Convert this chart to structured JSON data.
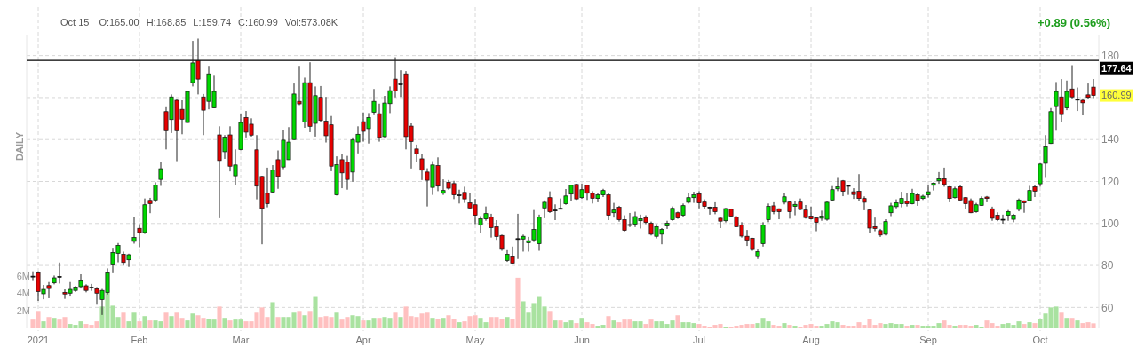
{
  "chart_data": {
    "type": "candlestick",
    "annotations": [
      "Oct 15",
      "O:165.00",
      "H:168.85",
      "L:159.74",
      "C:160.99",
      "Vol:573.08K",
      "+0.89 (0.56%)",
      "DAILY",
      {
        "text": "160.99",
        "y": 160.99
      }
    ],
    "categories": [
      null,
      "2021",
      null,
      null,
      null,
      null,
      null,
      null,
      null,
      null,
      null,
      null,
      null,
      null,
      null,
      null,
      null,
      null,
      null,
      null,
      "Feb",
      null,
      null,
      null,
      null,
      null,
      null,
      null,
      null,
      null,
      null,
      null,
      null,
      null,
      null,
      null,
      null,
      null,
      null,
      "Mar",
      null,
      null,
      null,
      null,
      null,
      null,
      null,
      null,
      null,
      null,
      null,
      null,
      null,
      null,
      null,
      null,
      null,
      null,
      null,
      null,
      null,
      null,
      "Apr",
      null,
      null,
      null,
      null,
      null,
      null,
      null,
      null,
      null,
      null,
      null,
      null,
      null,
      null,
      null,
      null,
      null,
      null,
      null,
      null,
      "May",
      null,
      null,
      null,
      null,
      null,
      null,
      null,
      null,
      null,
      null,
      null,
      null,
      null,
      null,
      null,
      null,
      null,
      null,
      null,
      "Jun",
      null,
      null,
      null,
      null,
      null,
      null,
      null,
      null,
      null,
      null,
      null,
      null,
      null,
      null,
      null,
      null,
      null,
      null,
      null,
      null,
      null,
      "Jul",
      null,
      null,
      null,
      null,
      null,
      null,
      null,
      null,
      null,
      null,
      null,
      null,
      null,
      null,
      null,
      null,
      null,
      null,
      null,
      null,
      "Aug",
      null,
      null,
      null,
      null,
      null,
      null,
      null,
      null,
      null,
      null,
      null,
      null,
      null,
      null,
      null,
      null,
      null,
      null,
      null,
      null,
      null,
      "Sep",
      null,
      null,
      null,
      null,
      null,
      null,
      null,
      null,
      null,
      null,
      null,
      null,
      null,
      null,
      null,
      null,
      null,
      null,
      null,
      null,
      "Oct",
      null,
      null,
      null,
      null,
      null,
      null,
      null,
      null,
      null,
      null
    ],
    "series": [
      {
        "type": "bar",
        "axis": "y2",
        "values": [
          1.0,
          2.0,
          0.8,
          1.3,
          1.2,
          1.0,
          1.3,
          0.5,
          0.4,
          0.8,
          0.5,
          0.4,
          0.8,
          2.5,
          4.1,
          2.6,
          1.3,
          1.8,
          0.8,
          1.8,
          0.8,
          1.4,
          0.9,
          0.9,
          0.8,
          1.8,
          1.4,
          1.8,
          1.2,
          0.9,
          1.7,
          1.5,
          1.2,
          1.1,
          1.0,
          2.5,
          1.2,
          0.9,
          1.0,
          1.0,
          0.8,
          0.8,
          1.8,
          2.4,
          1.3,
          3.0,
          1.3,
          1.3,
          1.3,
          1.8,
          2.0,
          1.5,
          2.0,
          3.6,
          1.3,
          1.4,
          1.3,
          1.8,
          1.0,
          1.3,
          1.5,
          1.4,
          0.9,
          0.9,
          1.2,
          1.2,
          1.3,
          1.2,
          1.8,
          1.3,
          2.5,
          1.4,
          1.3,
          1.7,
          1.8,
          1.2,
          1.1,
          1.2,
          1.5,
          1.1,
          0.7,
          0.8,
          1.4,
          1.5,
          1.2,
          0.7,
          1.3,
          1.3,
          1.1,
          1.3,
          1.1,
          5.8,
          3.1,
          1.8,
          2.9,
          3.6,
          2.5,
          2.0,
          0.9,
          0.9,
          0.7,
          0.9,
          0.6,
          1.2,
          0.7,
          0.5,
          0.3,
          0.4,
          1.4,
          0.9,
          0.7,
          1.0,
          1.0,
          0.8,
          0.8,
          0.5,
          1.0,
          0.8,
          0.8,
          0.5,
          0.9,
          1.5,
          0.7,
          0.7,
          0.6,
          0.5,
          0.3,
          0.2,
          0.4,
          0.5,
          0.2,
          0.2,
          0.3,
          0.4,
          0.5,
          0.5,
          0.6,
          1.2,
          0.8,
          0.4,
          0.3,
          0.6,
          0.4,
          0.3,
          0.2,
          0.4,
          0.5,
          0.3,
          0.3,
          0.5,
          0.8,
          0.7,
          0.4,
          0.3,
          0.3,
          0.7,
          0.4,
          1.1,
          0.4,
          0.6,
          0.5,
          0.6,
          0.5,
          0.5,
          0.3,
          0.4,
          0.4,
          0.3,
          0.3,
          0.3,
          0.6,
          0.9,
          0.4,
          0.3,
          0.4,
          0.4,
          0.3,
          0.4,
          0.2,
          0.9,
          0.6,
          0.3,
          0.5,
          0.6,
          0.4,
          0.8,
          0.5,
          0.7,
          0.6,
          1.1,
          1.7,
          2.4,
          2.5,
          1.8,
          1.2,
          1.2,
          0.9,
          0.6,
          0.7,
          0.57308
        ],
        "colors": [
          "#ffc0c0",
          "#ffc0c0",
          "#a9e2a0",
          "#ffc0c0",
          "#a9e2a0",
          "#ffc0c0",
          "#ffc0c0",
          "#a9e2a0",
          "#a9e2a0",
          "#a9e2a0",
          "#ffc0c0",
          "#ffc0c0",
          "#ffc0c0",
          "#a9e2a0",
          "#a9e2a0",
          "#a9e2a0",
          "#a9e2a0",
          "#ffc0c0",
          "#a9e2a0",
          "#a9e2a0",
          "#ffc0c0",
          "#a9e2a0",
          "#ffc0c0",
          "#a9e2a0",
          "#a9e2a0",
          "#ffc0c0",
          "#a9e2a0",
          "#ffc0c0",
          "#ffc0c0",
          "#a9e2a0",
          "#a9e2a0",
          "#ffc0c0",
          "#ffc0c0",
          "#a9e2a0",
          "#a9e2a0",
          "#ffc0c0",
          "#a9e2a0",
          "#ffc0c0",
          "#a9e2a0",
          "#a9e2a0",
          "#ffc0c0",
          "#ffc0c0",
          "#ffc0c0",
          "#ffc0c0",
          "#ffc0c0",
          "#a9e2a0",
          "#ffc0c0",
          "#a9e2a0",
          "#a9e2a0",
          "#a9e2a0",
          "#ffc0c0",
          "#a9e2a0",
          "#ffc0c0",
          "#a9e2a0",
          "#ffc0c0",
          "#ffc0c0",
          "#ffc0c0",
          "#a9e2a0",
          "#ffc0c0",
          "#ffc0c0",
          "#a9e2a0",
          "#a9e2a0",
          "#ffc0c0",
          "#a9e2a0",
          "#a9e2a0",
          "#ffc0c0",
          "#a9e2a0",
          "#a9e2a0",
          "#ffc0c0",
          "#a9e2a0",
          "#ffc0c0",
          "#ffc0c0",
          "#ffc0c0",
          "#ffc0c0",
          "#ffc0c0",
          "#a9e2a0",
          "#ffc0c0",
          "#a9e2a0",
          "#ffc0c0",
          "#ffc0c0",
          "#a9e2a0",
          "#ffc0c0",
          "#ffc0c0",
          "#ffc0c0",
          "#a9e2a0",
          "#a9e2a0",
          "#ffc0c0",
          "#ffc0c0",
          "#ffc0c0",
          "#a9e2a0",
          "#ffc0c0",
          "#ffc0c0",
          "#a9e2a0",
          "#a9e2a0",
          "#a9e2a0",
          "#a9e2a0",
          "#a9e2a0",
          "#ffc0c0",
          "#a9e2a0",
          "#ffc0c0",
          "#a9e2a0",
          "#a9e2a0",
          "#ffc0c0",
          "#a9e2a0",
          "#ffc0c0",
          "#ffc0c0",
          "#a9e2a0",
          "#a9e2a0",
          "#ffc0c0",
          "#a9e2a0",
          "#ffc0c0",
          "#ffc0c0",
          "#ffc0c0",
          "#a9e2a0",
          "#a9e2a0",
          "#ffc0c0",
          "#ffc0c0",
          "#a9e2a0",
          "#a9e2a0",
          "#a9e2a0",
          "#a9e2a0",
          "#ffc0c0",
          "#a9e2a0",
          "#a9e2a0",
          "#a9e2a0",
          "#ffc0c0",
          "#ffc0c0",
          "#ffc0c0",
          "#ffc0c0",
          "#ffc0c0",
          "#a9e2a0",
          "#ffc0c0",
          "#ffc0c0",
          "#ffc0c0",
          "#ffc0c0",
          "#ffc0c0",
          "#a9e2a0",
          "#a9e2a0",
          "#a9e2a0",
          "#ffc0c0",
          "#ffc0c0",
          "#a9e2a0",
          "#ffc0c0",
          "#a9e2a0",
          "#ffc0c0",
          "#ffc0c0",
          "#ffc0c0",
          "#ffc0c0",
          "#a9e2a0",
          "#a9e2a0",
          "#a9e2a0",
          "#a9e2a0",
          "#ffc0c0",
          "#ffc0c0",
          "#ffc0c0",
          "#ffc0c0",
          "#ffc0c0",
          "#ffc0c0",
          "#ffc0c0",
          "#ffc0c0",
          "#a9e2a0",
          "#a9e2a0",
          "#a9e2a0",
          "#a9e2a0",
          "#ffc0c0",
          "#a9e2a0",
          "#ffc0c0",
          "#a9e2a0",
          "#a9e2a0",
          "#a9e2a0",
          "#a9e2a0",
          "#ffc0c0",
          "#ffc0c0",
          "#a9e2a0",
          "#ffc0c0",
          "#ffc0c0",
          "#ffc0c0",
          "#a9e2a0",
          "#a9e2a0",
          "#ffc0c0",
          "#ffc0c0",
          "#ffc0c0",
          "#a9e2a0",
          "#a9e2a0",
          "#a9e2a0",
          "#a9e2a0",
          "#ffc0c0",
          "#a9e2a0",
          "#ffc0c0",
          "#a9e2a0",
          "#a9e2a0",
          "#a9e2a0",
          "#a9e2a0",
          "#ffc0c0",
          "#a9e2a0",
          "#ffc0c0",
          "#a9e2a0",
          "#ffc0c0",
          "#ffc0c0",
          "#ffc0c0"
        ]
      },
      {
        "ohlc": [
          [
            74.9,
            77.2,
            72.6,
            74.9
          ],
          [
            76.5,
            77.2,
            63.1,
            67.6
          ],
          [
            66.5,
            70.7,
            63.9,
            68.6
          ],
          [
            70.4,
            72.1,
            64.4,
            69.0
          ],
          [
            71.7,
            75.2,
            71.0,
            74.1
          ],
          [
            74.8,
            81.4,
            71.4,
            74.8
          ],
          [
            67.2,
            68.6,
            64.1,
            66.4
          ],
          [
            66.8,
            72.1,
            65.2,
            68.6
          ],
          [
            68.1,
            70.2,
            67.4,
            69.7
          ],
          [
            69.9,
            75.8,
            69.0,
            72.7
          ],
          [
            70.3,
            71.0,
            67.2,
            68.1
          ],
          [
            69.6,
            71.2,
            67.9,
            69.6
          ],
          [
            68.9,
            69.7,
            61.3,
            66.8
          ],
          [
            63.8,
            68.8,
            56.4,
            68.1
          ],
          [
            67.1,
            78.6,
            66.2,
            76.5
          ],
          [
            80.3,
            88.0,
            76.3,
            86.2
          ],
          [
            85.8,
            90.7,
            81.5,
            89.6
          ],
          [
            85.3,
            86.6,
            79.9,
            81.4
          ],
          [
            82.7,
            85.6,
            79.3,
            85.1
          ],
          [
            91.5,
            103.0,
            90.4,
            93.3
          ],
          [
            97.7,
            99.7,
            88.7,
            95.7
          ],
          [
            95.7,
            111.9,
            95.0,
            108.9
          ],
          [
            111.0,
            112.2,
            104.9,
            109.5
          ],
          [
            111.2,
            119.6,
            110.1,
            118.3
          ],
          [
            121.0,
            129.3,
            117.9,
            126.1
          ],
          [
            153.3,
            155.4,
            135.3,
            144.2
          ],
          [
            149.5,
            161.5,
            143.1,
            160.3
          ],
          [
            158.7,
            159.2,
            129.7,
            144.2
          ],
          [
            154.4,
            158.7,
            142.5,
            149.7
          ],
          [
            148.1,
            163.1,
            148.0,
            162.9
          ],
          [
            167.1,
            187.0,
            165.3,
            176.5
          ],
          [
            177.5,
            188.1,
            161.5,
            168.8
          ],
          [
            160.3,
            161.7,
            142.1,
            154.0
          ],
          [
            158.2,
            175.1,
            154.4,
            171.3
          ],
          [
            155.1,
            170.4,
            155.0,
            162.9
          ],
          [
            142.2,
            146.3,
            102.5,
            130.0
          ],
          [
            134.2,
            142.1,
            130.8,
            141.1
          ],
          [
            142.2,
            146.3,
            124.8,
            127.3
          ],
          [
            122.7,
            135.3,
            118.5,
            127.9
          ],
          [
            135.3,
            152.2,
            134.9,
            148.1
          ],
          [
            150.5,
            153.6,
            141.0,
            143.5
          ],
          [
            147.3,
            150.1,
            141.4,
            142.1
          ],
          [
            135.1,
            142.1,
            111.5,
            117.8
          ],
          [
            122.4,
            122.7,
            90.1,
            107.2
          ],
          [
            114.4,
            126.6,
            107.7,
            109.4
          ],
          [
            115.0,
            127.8,
            114.3,
            125.4
          ],
          [
            130.4,
            134.8,
            116.5,
            122.4
          ],
          [
            126.9,
            144.6,
            125.9,
            139.7
          ],
          [
            130.4,
            145.9,
            130.3,
            138.8
          ],
          [
            140.0,
            166.7,
            139.8,
            161.7
          ],
          [
            158.2,
            175.1,
            156.4,
            157.0
          ],
          [
            148.4,
            169.5,
            145.6,
            167.1
          ],
          [
            167.1,
            176.8,
            143.5,
            146.3
          ],
          [
            147.7,
            165.3,
            141.4,
            160.9
          ],
          [
            160.1,
            165.5,
            148.4,
            149.1
          ],
          [
            148.7,
            160.3,
            138.6,
            141.8
          ],
          [
            147.0,
            151.2,
            124.9,
            127.3
          ],
          [
            113.6,
            132.0,
            113.3,
            128.0
          ],
          [
            130.4,
            132.9,
            116.8,
            124.1
          ],
          [
            129.3,
            132.2,
            116.1,
            121.0
          ],
          [
            124.5,
            141.0,
            119.9,
            139.8
          ],
          [
            138.8,
            146.3,
            133.4,
            142.5
          ],
          [
            148.5,
            152.9,
            139.0,
            143.9
          ],
          [
            145.2,
            152.6,
            138.1,
            150.5
          ],
          [
            153.0,
            164.1,
            151.6,
            158.2
          ],
          [
            152.3,
            157.1,
            139.0,
            141.0
          ],
          [
            141.4,
            160.8,
            141.0,
            157.4
          ],
          [
            157.1,
            165.3,
            152.6,
            163.3
          ],
          [
            168.8,
            179.2,
            160.1,
            163.1
          ],
          [
            166.5,
            173.0,
            160.3,
            166.5
          ],
          [
            171.3,
            172.6,
            135.3,
            141.4
          ],
          [
            146.4,
            147.7,
            126.2,
            139.1
          ],
          [
            135.5,
            137.6,
            129.4,
            133.2
          ],
          [
            130.8,
            133.2,
            120.7,
            125.4
          ],
          [
            124.5,
            126.3,
            108.1,
            120.6
          ],
          [
            117.2,
            129.7,
            113.6,
            127.9
          ],
          [
            127.6,
            131.5,
            115.4,
            117.8
          ],
          [
            114.4,
            121.0,
            113.6,
            115.7
          ],
          [
            119.6,
            120.7,
            116.1,
            116.8
          ],
          [
            119.0,
            120.3,
            111.6,
            113.6
          ],
          [
            113.6,
            116.1,
            109.5,
            113.6
          ],
          [
            114.8,
            117.5,
            109.8,
            111.7
          ],
          [
            109.8,
            114.7,
            106.7,
            107.4
          ],
          [
            108.9,
            111.7,
            99.7,
            103.9
          ],
          [
            99.2,
            103.5,
            95.4,
            102.2
          ],
          [
            102.2,
            108.1,
            101.3,
            104.7
          ],
          [
            103.0,
            104.6,
            93.3,
            98.0
          ],
          [
            98.4,
            101.6,
            92.2,
            93.8
          ],
          [
            94.3,
            94.7,
            87.0,
            87.7
          ],
          [
            82.4,
            87.3,
            81.7,
            85.3
          ],
          [
            84.1,
            89.0,
            80.7,
            81.1
          ],
          [
            92.8,
            104.6,
            83.1,
            92.8
          ],
          [
            92.6,
            94.7,
            86.6,
            93.9
          ],
          [
            90.8,
            93.6,
            86.6,
            91.8
          ],
          [
            92.2,
            106.4,
            91.2,
            97.1
          ],
          [
            90.4,
            104.2,
            87.0,
            103.0
          ],
          [
            107.4,
            111.0,
            102.5,
            110.1
          ],
          [
            112.3,
            115.3,
            105.0,
            105.6
          ],
          [
            106.4,
            109.1,
            101.6,
            106.4
          ],
          [
            107.2,
            111.9,
            106.7,
            107.2
          ],
          [
            109.4,
            116.4,
            108.9,
            113.1
          ],
          [
            114.0,
            118.5,
            110.6,
            118.2
          ],
          [
            118.6,
            118.9,
            111.2,
            111.7
          ],
          [
            112.3,
            118.9,
            111.7,
            116.1
          ],
          [
            118.2,
            118.5,
            111.2,
            114.4
          ],
          [
            114.4,
            115.4,
            109.5,
            112.0
          ],
          [
            111.9,
            114.3,
            110.1,
            113.6
          ],
          [
            113.6,
            116.5,
            112.6,
            115.7
          ],
          [
            113.6,
            114.7,
            101.6,
            103.9
          ],
          [
            105.1,
            109.8,
            102.8,
            106.4
          ],
          [
            107.7,
            108.4,
            100.9,
            101.8
          ],
          [
            101.8,
            103.9,
            96.2,
            96.7
          ],
          [
            99.5,
            105.0,
            98.3,
            99.5
          ],
          [
            99.7,
            105.6,
            98.3,
            103.3
          ],
          [
            101.3,
            104.2,
            97.6,
            102.3
          ],
          [
            102.8,
            103.9,
            99.7,
            100.5
          ],
          [
            100.1,
            100.9,
            94.3,
            94.9
          ],
          [
            93.9,
            99.7,
            92.9,
            98.5
          ],
          [
            94.9,
            97.8,
            90.1,
            97.1
          ],
          [
            98.8,
            101.3,
            97.4,
            100.1
          ],
          [
            101.8,
            108.1,
            101.3,
            107.2
          ],
          [
            105.1,
            105.6,
            102.2,
            102.6
          ],
          [
            103.9,
            109.5,
            103.3,
            108.5
          ],
          [
            110.1,
            114.3,
            109.5,
            112.3
          ],
          [
            112.3,
            115.1,
            109.8,
            113.6
          ],
          [
            114.1,
            115.4,
            107.2,
            109.8
          ],
          [
            110.2,
            111.5,
            107.0,
            108.1
          ],
          [
            107.8,
            108.0,
            104.2,
            107.8
          ],
          [
            107.7,
            110.1,
            104.4,
            105.6
          ],
          [
            102.5,
            102.8,
            97.8,
            101.1
          ],
          [
            101.3,
            107.4,
            100.5,
            107.1
          ],
          [
            106.8,
            107.1,
            103.0,
            103.5
          ],
          [
            103.0,
            103.5,
            98.3,
            98.5
          ],
          [
            99.2,
            100.6,
            93.3,
            94.0
          ],
          [
            93.9,
            96.9,
            89.3,
            92.1
          ],
          [
            92.9,
            93.2,
            87.0,
            87.6
          ],
          [
            84.2,
            87.6,
            83.1,
            86.6
          ],
          [
            90.4,
            100.6,
            89.0,
            99.2
          ],
          [
            101.8,
            109.5,
            100.6,
            108.1
          ],
          [
            108.4,
            110.1,
            104.4,
            105.6
          ],
          [
            107.0,
            107.2,
            102.0,
            105.6
          ],
          [
            110.1,
            114.7,
            109.1,
            112.7
          ],
          [
            110.2,
            110.5,
            102.3,
            105.6
          ],
          [
            108.1,
            110.5,
            103.9,
            109.1
          ],
          [
            110.2,
            111.9,
            106.3,
            106.7
          ],
          [
            106.4,
            108.8,
            102.3,
            102.8
          ],
          [
            103.5,
            108.0,
            101.9,
            102.2
          ],
          [
            102.6,
            103.0,
            96.3,
            100.5
          ],
          [
            102.5,
            106.1,
            101.3,
            103.5
          ],
          [
            102.0,
            110.5,
            101.3,
            110.1
          ],
          [
            111.2,
            117.8,
            110.5,
            116.1
          ],
          [
            116.5,
            121.7,
            115.4,
            117.5
          ],
          [
            120.3,
            120.7,
            113.0,
            115.3
          ],
          [
            118.1,
            118.2,
            113.6,
            118.1
          ],
          [
            115.1,
            116.8,
            111.7,
            113.8
          ],
          [
            115.3,
            123.5,
            110.5,
            111.9
          ],
          [
            111.9,
            112.9,
            106.3,
            110.1
          ],
          [
            106.4,
            107.0,
            95.3,
            97.8
          ],
          [
            98.5,
            102.8,
            96.3,
            97.6
          ],
          [
            96.6,
            97.4,
            93.6,
            94.5
          ],
          [
            94.9,
            102.0,
            94.3,
            100.9
          ],
          [
            105.1,
            109.8,
            103.5,
            108.4
          ],
          [
            108.0,
            111.5,
            107.2,
            109.8
          ],
          [
            109.4,
            115.1,
            107.7,
            111.9
          ],
          [
            110.6,
            114.4,
            108.1,
            109.4
          ],
          [
            109.4,
            116.5,
            109.1,
            114.3
          ],
          [
            113.7,
            114.3,
            108.4,
            111.0
          ],
          [
            111.9,
            113.7,
            111.2,
            113.0
          ],
          [
            113.6,
            118.2,
            112.3,
            115.1
          ],
          [
            118.2,
            119.6,
            115.7,
            119.2
          ],
          [
            120.3,
            124.5,
            118.9,
            121.3
          ],
          [
            121.3,
            126.6,
            117.5,
            118.6
          ],
          [
            117.5,
            117.8,
            110.1,
            111.9
          ],
          [
            112.3,
            117.5,
            111.9,
            116.5
          ],
          [
            117.5,
            118.5,
            110.9,
            111.2
          ],
          [
            112.3,
            112.6,
            107.0,
            109.4
          ],
          [
            110.9,
            111.9,
            104.9,
            105.1
          ],
          [
            105.6,
            109.8,
            105.1,
            108.9
          ],
          [
            108.6,
            112.9,
            108.4,
            111.9
          ],
          [
            112.6,
            113.1,
            110.1,
            111.9
          ],
          [
            107.0,
            108.0,
            101.3,
            102.5
          ],
          [
            103.9,
            105.3,
            101.1,
            101.8
          ],
          [
            102.0,
            104.2,
            99.9,
            102.0
          ],
          [
            103.9,
            106.4,
            101.3,
            105.6
          ],
          [
            102.0,
            104.6,
            100.6,
            103.9
          ],
          [
            106.7,
            111.9,
            105.8,
            111.2
          ],
          [
            110.8,
            111.0,
            105.1,
            109.8
          ],
          [
            110.9,
            117.9,
            110.5,
            115.7
          ],
          [
            117.5,
            118.2,
            112.6,
            115.4
          ],
          [
            118.9,
            128.7,
            117.5,
            128.3
          ],
          [
            128.7,
            142.1,
            121.7,
            136.5
          ],
          [
            138.1,
            155.0,
            137.9,
            153.3
          ],
          [
            155.7,
            167.4,
            144.2,
            162.9
          ],
          [
            160.3,
            168.8,
            148.4,
            151.9
          ],
          [
            155.1,
            168.1,
            154.0,
            162.9
          ],
          [
            164.1,
            175.4,
            159.6,
            160.3
          ],
          [
            159.2,
            164.8,
            153.6,
            159.2
          ],
          [
            158.7,
            159.6,
            151.5,
            157.5
          ],
          [
            161.3,
            166.7,
            159.2,
            160.1
          ],
          [
            165.0,
            168.85,
            159.74,
            160.99
          ]
        ],
        "colors": [
          "#000000",
          "#e60000",
          "#00d800",
          "#e60000",
          "#00d800",
          "#000000",
          "#e60000",
          "#00d800",
          "#00d800",
          "#00d800",
          "#e60000",
          "#000000",
          "#e60000",
          "#00d800",
          "#00d800",
          "#00d800",
          "#00d800",
          "#e60000",
          "#00d800",
          "#00d800",
          "#e60000",
          "#00d800",
          "#e60000",
          "#00d800",
          "#00d800",
          "#e60000",
          "#00d800",
          "#e60000",
          "#e60000",
          "#00d800",
          "#00d800",
          "#e60000",
          "#e60000",
          "#00d800",
          "#00d800",
          "#e60000",
          "#00d800",
          "#e60000",
          "#00d800",
          "#00d800",
          "#e60000",
          "#e60000",
          "#e60000",
          "#e60000",
          "#e60000",
          "#00d800",
          "#e60000",
          "#00d800",
          "#00d800",
          "#00d800",
          "#e60000",
          "#00d800",
          "#e60000",
          "#00d800",
          "#e60000",
          "#e60000",
          "#e60000",
          "#00d800",
          "#e60000",
          "#e60000",
          "#00d800",
          "#00d800",
          "#e60000",
          "#00d800",
          "#00d800",
          "#e60000",
          "#00d800",
          "#00d800",
          "#e60000",
          "#000000",
          "#e60000",
          "#e60000",
          "#e60000",
          "#e60000",
          "#e60000",
          "#00d800",
          "#e60000",
          "#00d800",
          "#e60000",
          "#e60000",
          "#000000",
          "#e60000",
          "#e60000",
          "#e60000",
          "#00d800",
          "#00d800",
          "#e60000",
          "#e60000",
          "#e60000",
          "#00d800",
          "#e60000",
          "#000000",
          "#00d800",
          "#00d800",
          "#00d800",
          "#00d800",
          "#00d800",
          "#e60000",
          "#000000",
          "#000000",
          "#00d800",
          "#00d800",
          "#e60000",
          "#00d800",
          "#e60000",
          "#e60000",
          "#00d800",
          "#00d800",
          "#e60000",
          "#00d800",
          "#e60000",
          "#e60000",
          "#000000",
          "#00d800",
          "#00d800",
          "#e60000",
          "#e60000",
          "#00d800",
          "#00d800",
          "#00d800",
          "#00d800",
          "#e60000",
          "#00d800",
          "#00d800",
          "#00d800",
          "#e60000",
          "#e60000",
          "#000000",
          "#e60000",
          "#e60000",
          "#00d800",
          "#e60000",
          "#e60000",
          "#e60000",
          "#e60000",
          "#e60000",
          "#00d800",
          "#00d800",
          "#00d800",
          "#e60000",
          "#e60000",
          "#00d800",
          "#e60000",
          "#00d800",
          "#e60000",
          "#e60000",
          "#e60000",
          "#e60000",
          "#00d800",
          "#00d800",
          "#00d800",
          "#00d800",
          "#e60000",
          "#000000",
          "#e60000",
          "#e60000",
          "#e60000",
          "#e60000",
          "#e60000",
          "#e60000",
          "#00d800",
          "#00d800",
          "#00d800",
          "#00d800",
          "#e60000",
          "#00d800",
          "#e60000",
          "#00d800",
          "#00d800",
          "#00d800",
          "#00d800",
          "#e60000",
          "#e60000",
          "#00d800",
          "#e60000",
          "#e60000",
          "#e60000",
          "#00d800",
          "#00d800",
          "#e60000",
          "#e60000",
          "#e60000",
          "#000000",
          "#00d800",
          "#00d800",
          "#00d800",
          "#e60000",
          "#00d800",
          "#e60000",
          "#00d800",
          "#00d800",
          "#00d800",
          "#00d800",
          "#e60000",
          "#00d800",
          "#e60000",
          "#000000",
          "#e60000",
          "#e60000",
          "#e60000"
        ]
      }
    ],
    "ylim": [
      50,
      190
    ],
    "yticks": [
      60,
      80,
      100,
      120,
      140,
      {
        "value": 160,
        "label": null
      },
      180
    ],
    "y2lim": [
      0,
      33.6
    ],
    "y2ticks": [
      {
        "value": 2,
        "label": "2M"
      },
      {
        "value": 4,
        "label": "4M"
      },
      {
        "value": 6,
        "label": "6M"
      }
    ],
    "ref_lines": [
      {
        "axis": "y",
        "value": 177.64,
        "label": "177.64",
        "color": "#000000"
      }
    ],
    "grid": true
  }
}
